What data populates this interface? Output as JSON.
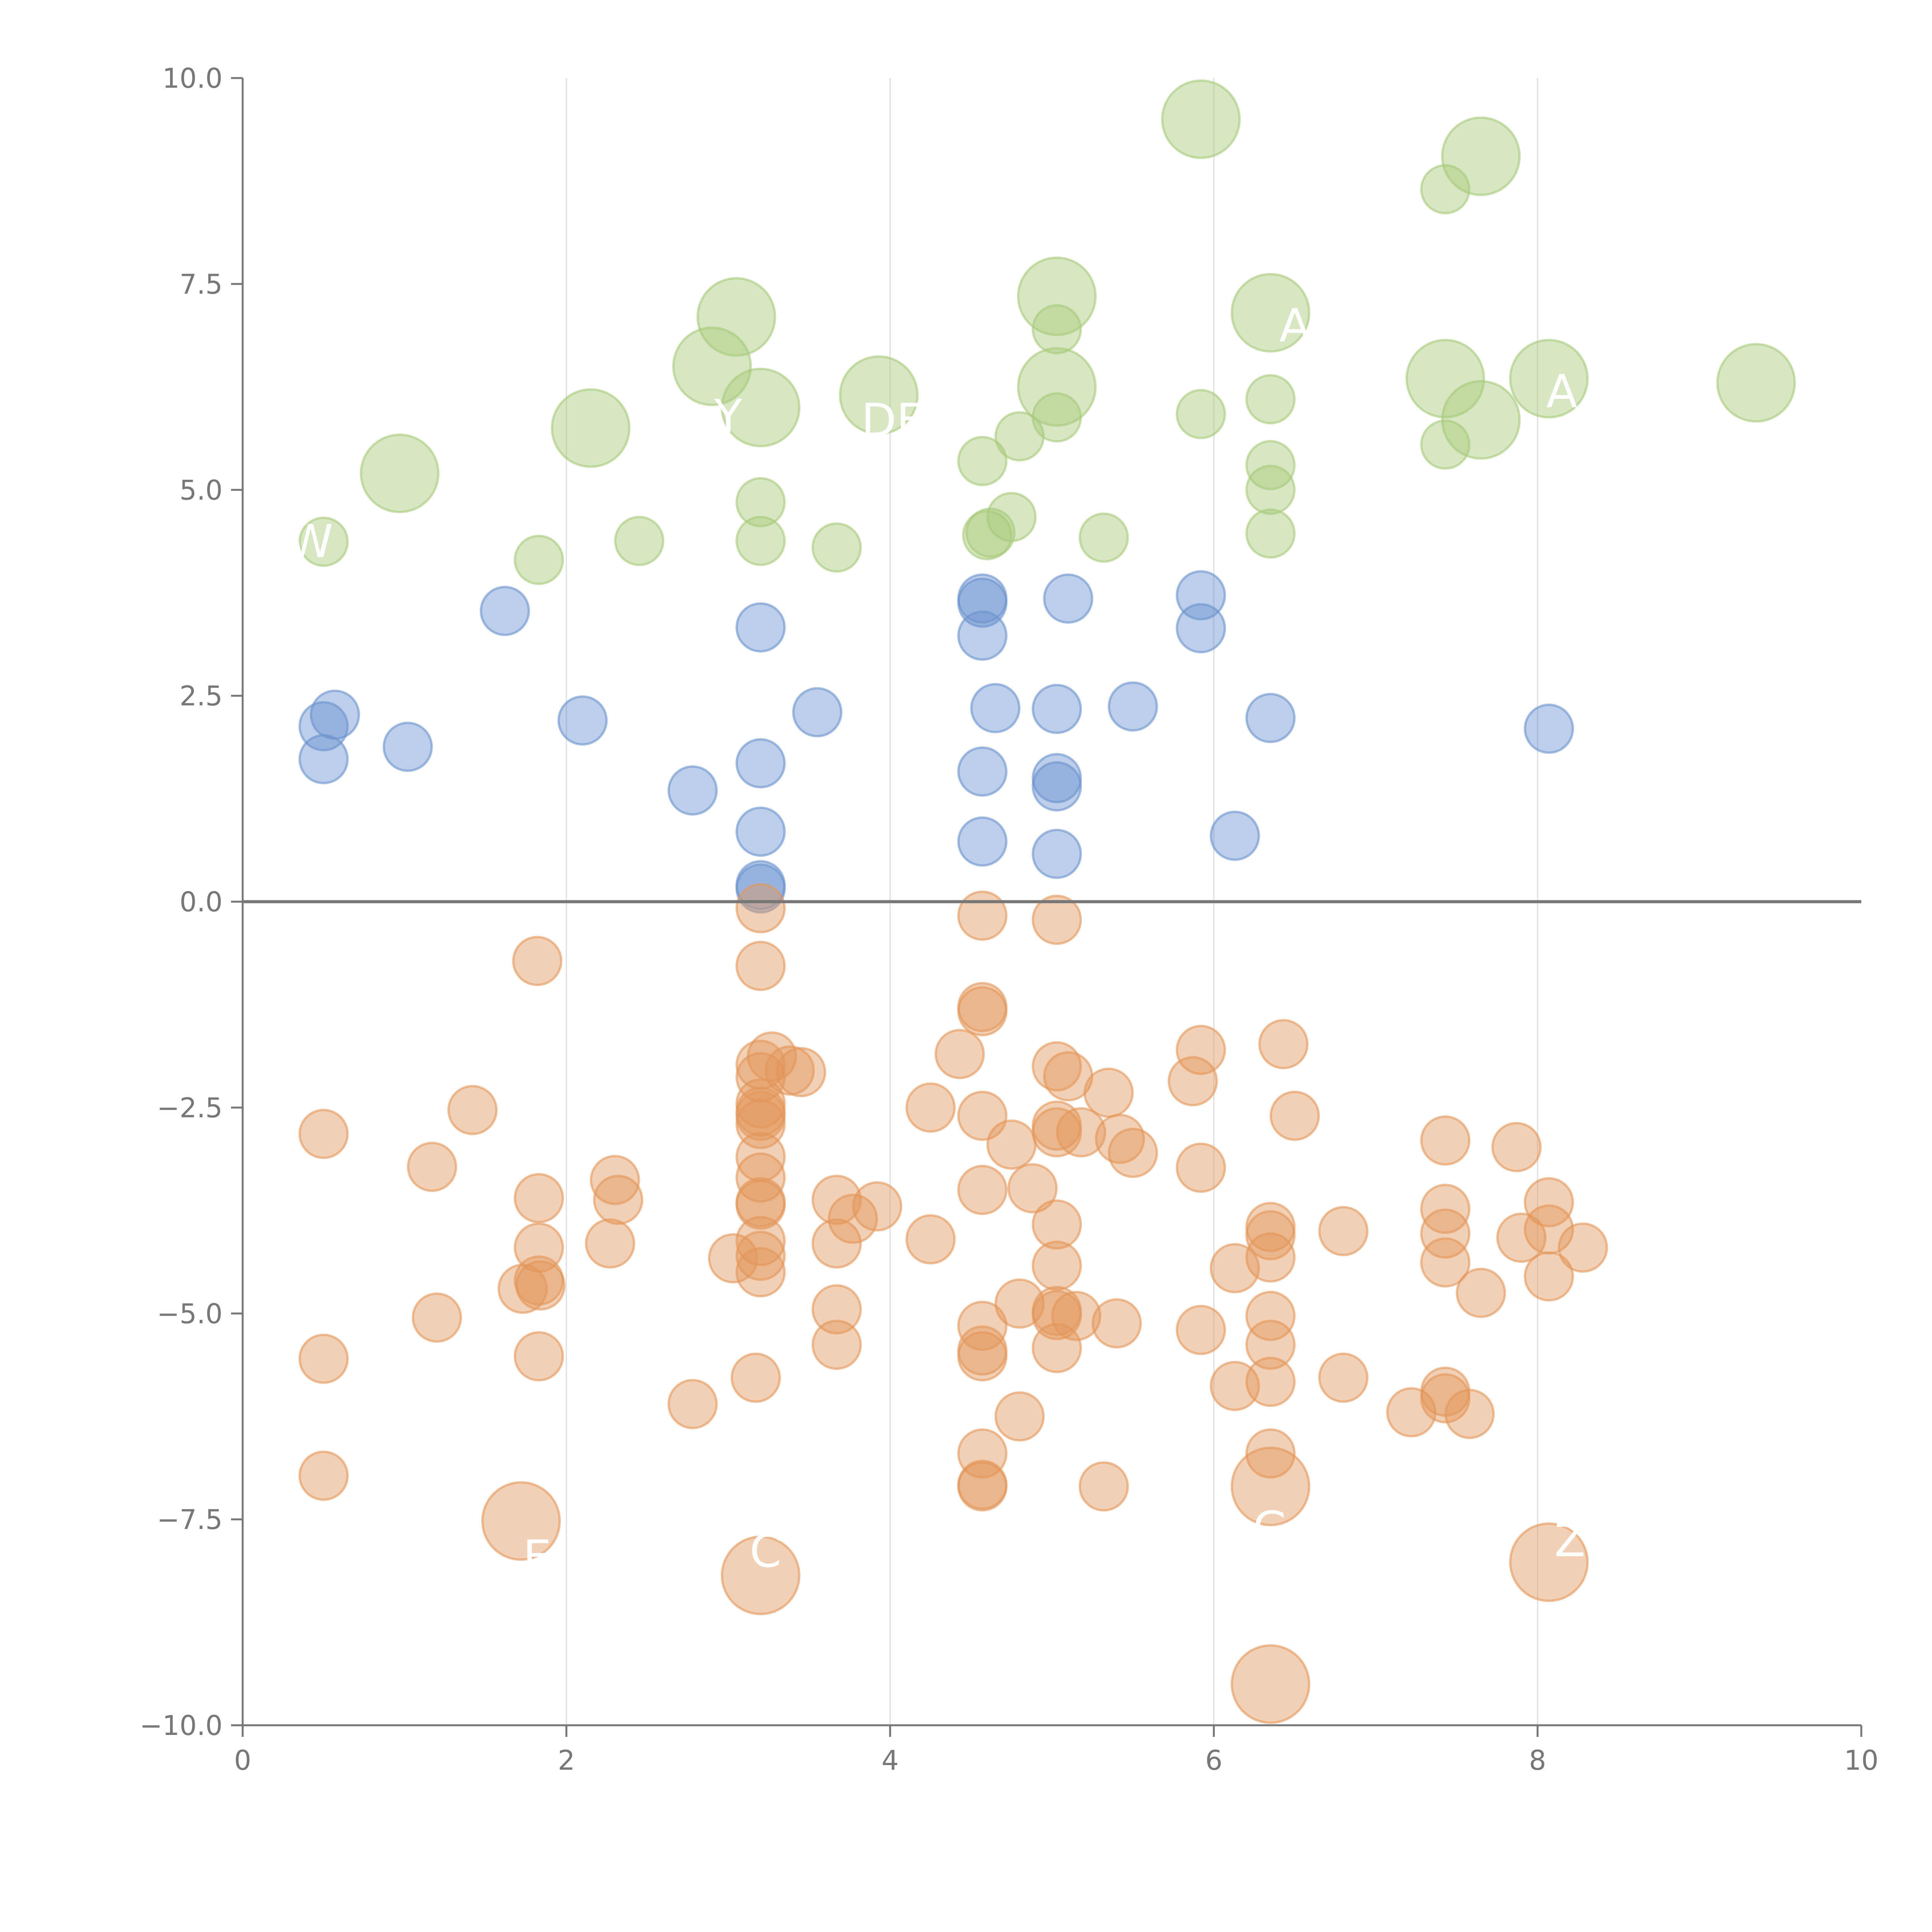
{
  "chart_data": {
    "type": "scatter",
    "title": "",
    "xlabel": "",
    "ylabel": "",
    "xlim": [
      0,
      10
    ],
    "ylim": [
      -10,
      10
    ],
    "x_ticks": [
      "0",
      "2",
      "4",
      "6",
      "8",
      "10"
    ],
    "y_ticks": [
      "−10.0",
      "−7.5",
      "−5.0",
      "−2.5",
      "0.0",
      "2.5",
      "5.0",
      "7.5",
      "10.0"
    ],
    "x_grid": [
      2,
      4,
      6,
      8
    ],
    "zero_line": 0,
    "colors": {
      "green": "#a9c97a",
      "blue": "#6b93cf",
      "orange": "#e2965a",
      "axis": "#777777",
      "grid": "#dddddd",
      "label": "#ffffff"
    },
    "series": [
      {
        "name": "green",
        "points": [
          [
            5.92,
            9.5,
            2
          ],
          [
            7.65,
            9.05,
            2
          ],
          [
            7.43,
            8.65,
            1
          ],
          [
            5.03,
            7.35,
            2
          ],
          [
            6.35,
            7.15,
            2
          ],
          [
            3.05,
            7.1,
            2
          ],
          [
            5.03,
            6.95,
            1
          ],
          [
            2.9,
            6.5,
            2
          ],
          [
            7.43,
            6.35,
            2
          ],
          [
            8.07,
            6.35,
            2
          ],
          [
            9.35,
            6.3,
            2
          ],
          [
            5.03,
            6.25,
            2
          ],
          [
            3.93,
            6.15,
            2
          ],
          [
            3.2,
            6.0,
            2
          ],
          [
            6.35,
            6.1,
            1
          ],
          [
            5.92,
            5.92,
            1
          ],
          [
            5.03,
            5.88,
            1
          ],
          [
            7.65,
            5.85,
            2
          ],
          [
            2.15,
            5.75,
            2
          ],
          [
            4.8,
            5.65,
            1
          ],
          [
            7.43,
            5.55,
            1
          ],
          [
            4.57,
            5.35,
            1
          ],
          [
            6.35,
            5.3,
            1
          ],
          [
            0.97,
            5.2,
            2
          ],
          [
            6.35,
            5.0,
            1
          ],
          [
            3.2,
            4.85,
            1
          ],
          [
            4.75,
            4.67,
            1
          ],
          [
            4.62,
            4.48,
            1
          ],
          [
            4.6,
            4.45,
            1
          ],
          [
            6.35,
            4.47,
            1
          ],
          [
            5.32,
            4.42,
            1
          ],
          [
            2.45,
            4.38,
            1
          ],
          [
            3.2,
            4.38,
            1
          ],
          [
            0.5,
            4.37,
            1
          ],
          [
            3.67,
            4.3,
            1
          ],
          [
            1.83,
            4.15,
            1
          ]
        ]
      },
      {
        "name": "blue",
        "points": [
          [
            5.92,
            3.72,
            1
          ],
          [
            4.57,
            3.68,
            1
          ],
          [
            4.57,
            3.63,
            1
          ],
          [
            5.1,
            3.68,
            1
          ],
          [
            1.62,
            3.53,
            1
          ],
          [
            3.2,
            3.33,
            1
          ],
          [
            5.92,
            3.32,
            1
          ],
          [
            4.57,
            3.23,
            1
          ],
          [
            5.5,
            2.37,
            1
          ],
          [
            4.65,
            2.35,
            1
          ],
          [
            5.03,
            2.34,
            1
          ],
          [
            3.55,
            2.3,
            1
          ],
          [
            0.57,
            2.27,
            1
          ],
          [
            6.35,
            2.23,
            1
          ],
          [
            2.1,
            2.2,
            1
          ],
          [
            0.5,
            2.13,
            1
          ],
          [
            8.07,
            2.1,
            1
          ],
          [
            1.02,
            1.88,
            1
          ],
          [
            0.5,
            1.73,
            1
          ],
          [
            3.2,
            1.68,
            1
          ],
          [
            4.57,
            1.58,
            1
          ],
          [
            5.03,
            1.5,
            1
          ],
          [
            5.03,
            1.4,
            1
          ],
          [
            2.78,
            1.35,
            1
          ],
          [
            3.2,
            0.85,
            1
          ],
          [
            6.13,
            0.8,
            1
          ],
          [
            4.57,
            0.73,
            1
          ],
          [
            5.03,
            0.58,
            1
          ],
          [
            3.2,
            0.2,
            1
          ],
          [
            3.2,
            0.16,
            1
          ]
        ]
      },
      {
        "name": "orange",
        "points": [
          [
            3.2,
            -0.08,
            1
          ],
          [
            4.57,
            -0.17,
            1
          ],
          [
            5.03,
            -0.22,
            1
          ],
          [
            1.82,
            -0.72,
            1
          ],
          [
            3.2,
            -0.78,
            1
          ],
          [
            4.57,
            -1.28,
            1
          ],
          [
            4.57,
            -1.33,
            1
          ],
          [
            6.43,
            -1.73,
            1
          ],
          [
            5.92,
            -1.8,
            1
          ],
          [
            4.43,
            -1.85,
            1
          ],
          [
            3.27,
            -1.88,
            1
          ],
          [
            3.2,
            -1.98,
            1
          ],
          [
            5.03,
            -2.0,
            1
          ],
          [
            3.38,
            -2.05,
            1
          ],
          [
            3.45,
            -2.07,
            1
          ],
          [
            5.1,
            -2.12,
            1
          ],
          [
            3.2,
            -2.13,
            1
          ],
          [
            5.87,
            -2.18,
            1
          ],
          [
            5.35,
            -2.32,
            1
          ],
          [
            3.2,
            -2.45,
            1
          ],
          [
            4.25,
            -2.5,
            1
          ],
          [
            1.42,
            -2.53,
            1
          ],
          [
            3.2,
            -2.55,
            1
          ],
          [
            3.2,
            -2.6,
            1
          ],
          [
            4.57,
            -2.6,
            1
          ],
          [
            6.5,
            -2.6,
            1
          ],
          [
            3.2,
            -2.7,
            1
          ],
          [
            5.03,
            -2.72,
            1
          ],
          [
            5.03,
            -2.8,
            1
          ],
          [
            5.18,
            -2.8,
            1
          ],
          [
            0.5,
            -2.82,
            1
          ],
          [
            5.42,
            -2.88,
            1
          ],
          [
            7.43,
            -2.9,
            1
          ],
          [
            4.75,
            -2.95,
            1
          ],
          [
            7.87,
            -2.98,
            1
          ],
          [
            5.5,
            -3.05,
            1
          ],
          [
            3.2,
            -3.1,
            1
          ],
          [
            1.17,
            -3.22,
            1
          ],
          [
            5.92,
            -3.23,
            1
          ],
          [
            3.2,
            -3.35,
            1
          ],
          [
            2.3,
            -3.38,
            1
          ],
          [
            4.57,
            -3.5,
            1
          ],
          [
            4.88,
            -3.48,
            1
          ],
          [
            1.83,
            -3.6,
            1
          ],
          [
            2.32,
            -3.62,
            1
          ],
          [
            3.67,
            -3.62,
            1
          ],
          [
            3.2,
            -3.65,
            1
          ],
          [
            3.2,
            -3.68,
            1
          ],
          [
            8.07,
            -3.65,
            1
          ],
          [
            3.92,
            -3.7,
            1
          ],
          [
            7.43,
            -3.73,
            1
          ],
          [
            3.77,
            -3.85,
            1
          ],
          [
            5.03,
            -3.92,
            1
          ],
          [
            6.35,
            -3.95,
            1
          ],
          [
            6.35,
            -4.05,
            1
          ],
          [
            8.07,
            -3.98,
            1
          ],
          [
            6.8,
            -4.0,
            1
          ],
          [
            7.43,
            -4.03,
            1
          ],
          [
            7.9,
            -4.08,
            1
          ],
          [
            4.25,
            -4.1,
            1
          ],
          [
            3.2,
            -4.12,
            1
          ],
          [
            3.67,
            -4.15,
            1
          ],
          [
            2.27,
            -4.15,
            1
          ],
          [
            1.83,
            -4.2,
            1
          ],
          [
            8.28,
            -4.2,
            1
          ],
          [
            3.03,
            -4.33,
            1
          ],
          [
            3.2,
            -4.3,
            1
          ],
          [
            6.35,
            -4.32,
            1
          ],
          [
            7.43,
            -4.38,
            1
          ],
          [
            5.03,
            -4.42,
            1
          ],
          [
            6.13,
            -4.45,
            1
          ],
          [
            3.2,
            -4.5,
            1
          ],
          [
            8.07,
            -4.55,
            1
          ],
          [
            1.83,
            -4.6,
            1
          ],
          [
            1.84,
            -4.66,
            1
          ],
          [
            1.73,
            -4.7,
            1
          ],
          [
            7.65,
            -4.75,
            1
          ],
          [
            4.8,
            -4.88,
            1
          ],
          [
            3.67,
            -4.95,
            1
          ],
          [
            5.03,
            -4.97,
            1
          ],
          [
            6.35,
            -5.03,
            1
          ],
          [
            5.03,
            -5.02,
            1
          ],
          [
            5.15,
            -5.03,
            1
          ],
          [
            1.2,
            -5.05,
            1
          ],
          [
            5.4,
            -5.12,
            1
          ],
          [
            4.57,
            -5.15,
            1
          ],
          [
            5.92,
            -5.2,
            1
          ],
          [
            3.67,
            -5.38,
            1
          ],
          [
            6.35,
            -5.38,
            1
          ],
          [
            5.03,
            -5.42,
            1
          ],
          [
            4.57,
            -5.45,
            1
          ],
          [
            4.57,
            -5.52,
            1
          ],
          [
            1.83,
            -5.52,
            1
          ],
          [
            0.5,
            -5.55,
            1
          ],
          [
            3.17,
            -5.78,
            1
          ],
          [
            6.8,
            -5.78,
            1
          ],
          [
            6.35,
            -5.83,
            1
          ],
          [
            6.13,
            -5.88,
            1
          ],
          [
            7.43,
            -5.95,
            1
          ],
          [
            7.43,
            -6.03,
            1
          ],
          [
            2.78,
            -6.1,
            1
          ],
          [
            7.22,
            -6.2,
            1
          ],
          [
            7.58,
            -6.22,
            1
          ],
          [
            4.8,
            -6.25,
            1
          ],
          [
            4.57,
            -6.7,
            1
          ],
          [
            6.35,
            -6.7,
            1
          ],
          [
            0.5,
            -6.97,
            1
          ],
          [
            4.57,
            -7.08,
            1
          ],
          [
            4.57,
            -7.1,
            1
          ],
          [
            5.32,
            -7.1,
            1
          ],
          [
            6.35,
            -7.1,
            2
          ],
          [
            1.72,
            -7.52,
            2
          ],
          [
            8.07,
            -8.02,
            2
          ],
          [
            3.2,
            -8.18,
            2
          ],
          [
            6.35,
            -9.5,
            2
          ]
        ]
      }
    ],
    "labels": [
      {
        "text": "W",
        "x": 0.42,
        "y": 4.38
      },
      {
        "text": "Y",
        "x": 3.0,
        "y": 5.9
      },
      {
        "text": "DEF",
        "x": 4.1,
        "y": 5.85
      },
      {
        "text": "A",
        "x": 6.5,
        "y": 7.0
      },
      {
        "text": "A",
        "x": 8.15,
        "y": 6.2
      },
      {
        "text": "E",
        "x": 1.82,
        "y": -7.95
      },
      {
        "text": "C",
        "x": 3.23,
        "y": -7.88
      },
      {
        "text": "G",
        "x": 6.35,
        "y": -7.6
      },
      {
        "text": "Z",
        "x": 8.2,
        "y": -7.75
      }
    ]
  }
}
